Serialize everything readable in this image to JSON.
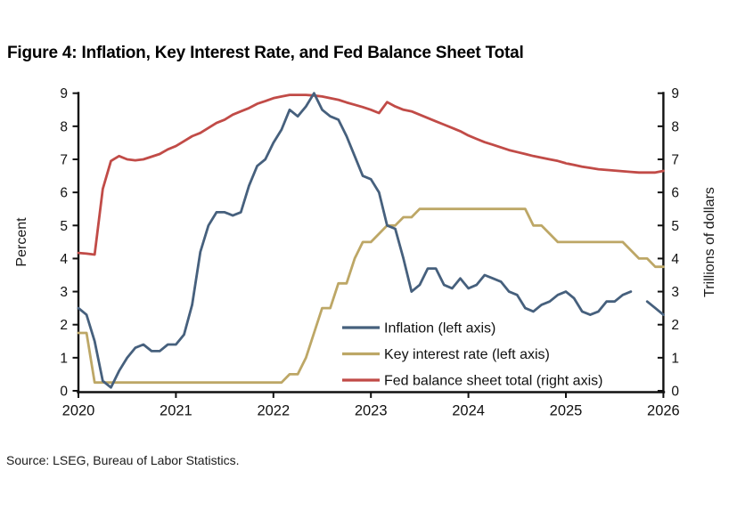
{
  "title": "Figure 4: Inflation, Key Interest Rate, and Fed Balance Sheet Total",
  "source": "Source: LSEG, Bureau of Labor Statistics.",
  "chart_data": {
    "type": "line",
    "frequency": "monthly",
    "start": "2020-01",
    "end": "2026-01",
    "x_ticks": [
      "2020",
      "2021",
      "2022",
      "2023",
      "2024",
      "2025",
      "2026"
    ],
    "left_axis": {
      "label": "Percent",
      "min": 0,
      "max": 9,
      "ticks": [
        0,
        1,
        2,
        3,
        4,
        5,
        6,
        7,
        8,
        9
      ]
    },
    "right_axis": {
      "label": "Trillions of dollars",
      "min": 0,
      "max": 9,
      "ticks": [
        0,
        1,
        2,
        3,
        4,
        5,
        6,
        7,
        8,
        9
      ]
    },
    "legend_position": "inside-lower-right",
    "grid": false,
    "legend": [
      {
        "label": "Inflation (left axis)",
        "color": "#46607d"
      },
      {
        "label": "Key interest rate (left axis)",
        "color": "#bda766"
      },
      {
        "label": "Fed balance sheet total (right axis)",
        "color": "#c14b47"
      }
    ],
    "series": [
      {
        "id": "inflation",
        "name": "Inflation (left axis)",
        "axis": "left",
        "color": "#46607d",
        "values": [
          2.5,
          2.3,
          1.5,
          0.3,
          0.1,
          0.6,
          1.0,
          1.3,
          1.4,
          1.2,
          1.2,
          1.4,
          1.4,
          1.7,
          2.6,
          4.2,
          5.0,
          5.4,
          5.4,
          5.3,
          5.4,
          6.2,
          6.8,
          7.0,
          7.5,
          7.9,
          8.5,
          8.3,
          8.6,
          9.0,
          8.5,
          8.3,
          8.2,
          7.7,
          7.1,
          6.5,
          6.4,
          6.0,
          5.0,
          4.9,
          4.0,
          3.0,
          3.2,
          3.7,
          3.7,
          3.2,
          3.1,
          3.4,
          3.1,
          3.2,
          3.5,
          3.4,
          3.3,
          3.0,
          2.9,
          2.5,
          2.4,
          2.6,
          2.7,
          2.9,
          3.0,
          2.8,
          2.4,
          2.3,
          2.4,
          2.7,
          2.7,
          2.9,
          3.0,
          null,
          2.7,
          2.5,
          2.3
        ]
      },
      {
        "id": "key-interest-rate",
        "name": "Key interest rate (left axis)",
        "axis": "left",
        "color": "#bda766",
        "values": [
          1.75,
          1.75,
          0.25,
          0.25,
          0.25,
          0.25,
          0.25,
          0.25,
          0.25,
          0.25,
          0.25,
          0.25,
          0.25,
          0.25,
          0.25,
          0.25,
          0.25,
          0.25,
          0.25,
          0.25,
          0.25,
          0.25,
          0.25,
          0.25,
          0.25,
          0.25,
          0.5,
          0.5,
          1.0,
          1.75,
          2.5,
          2.5,
          3.25,
          3.25,
          4.0,
          4.5,
          4.5,
          4.75,
          5.0,
          5.0,
          5.25,
          5.25,
          5.5,
          5.5,
          5.5,
          5.5,
          5.5,
          5.5,
          5.5,
          5.5,
          5.5,
          5.5,
          5.5,
          5.5,
          5.5,
          5.5,
          5.0,
          5.0,
          4.75,
          4.5,
          4.5,
          4.5,
          4.5,
          4.5,
          4.5,
          4.5,
          4.5,
          4.5,
          4.25,
          4.0,
          4.0,
          3.75,
          3.75
        ]
      },
      {
        "id": "fed-balance-sheet-total",
        "name": "Fed balance sheet total (right axis)",
        "axis": "right",
        "color": "#c14b47",
        "values": [
          4.17,
          4.15,
          4.12,
          6.1,
          6.95,
          7.1,
          7.0,
          6.97,
          7.0,
          7.08,
          7.16,
          7.3,
          7.4,
          7.55,
          7.7,
          7.8,
          7.95,
          8.1,
          8.2,
          8.35,
          8.45,
          8.55,
          8.68,
          8.76,
          8.85,
          8.9,
          8.95,
          8.95,
          8.95,
          8.93,
          8.9,
          8.85,
          8.8,
          8.72,
          8.65,
          8.58,
          8.5,
          8.4,
          8.73,
          8.6,
          8.5,
          8.45,
          8.35,
          8.25,
          8.15,
          8.05,
          7.95,
          7.85,
          7.72,
          7.62,
          7.52,
          7.44,
          7.36,
          7.28,
          7.22,
          7.16,
          7.1,
          7.05,
          7.0,
          6.95,
          6.88,
          6.83,
          6.78,
          6.74,
          6.7,
          6.68,
          6.66,
          6.64,
          6.62,
          6.6,
          6.6,
          6.6,
          6.65
        ]
      }
    ]
  }
}
